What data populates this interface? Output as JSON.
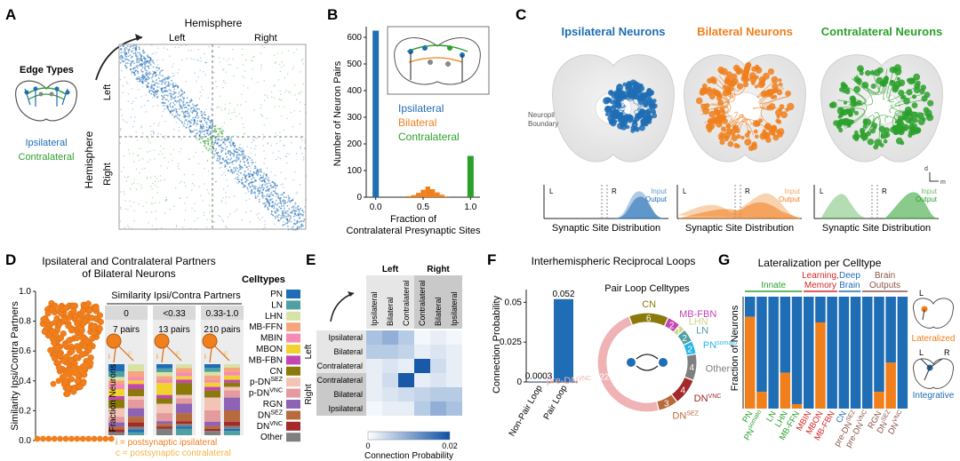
{
  "panels": {
    "a": "A",
    "b": "B",
    "c": "C",
    "d": "D",
    "e": "E",
    "f": "F",
    "g": "G"
  },
  "colors": {
    "ipsi": "#1f6db5",
    "bi": "#f07f1c",
    "contra": "#2ca02c",
    "bg": "#ffffff"
  },
  "panelA": {
    "edge_types_title": "Edge Types",
    "legend_ipsi": "Ipsilateral",
    "legend_contra": "Contralateral",
    "hemisphere_top": "Hemisphere",
    "hemisphere_side": "Hemisphere",
    "left": "Left",
    "right": "Right",
    "row_left": "Left",
    "row_right": "Right"
  },
  "panelB": {
    "ylabel": "Number of Neuron Pairs",
    "xlabel1": "Fraction of",
    "xlabel2": "Contralateral Presynaptic Sites",
    "legend": [
      "Ipsilateral",
      "Bilateral",
      "Contralateral"
    ],
    "yticks": [
      "0",
      "100",
      "200",
      "300",
      "400",
      "500",
      "600"
    ],
    "xticks": [
      "0.0",
      "0.5",
      "1.0"
    ]
  },
  "chart_data": {
    "type": "bar",
    "title": "",
    "xlabel": "Fraction of Contralateral Presynaptic Sites",
    "ylabel": "Number of Neuron Pairs",
    "ylim": [
      0,
      640
    ],
    "series": [
      {
        "name": "Ipsilateral",
        "x": [
          0.0
        ],
        "values": [
          625
        ]
      },
      {
        "name": "Bilateral",
        "x": [
          0.35,
          0.4,
          0.45,
          0.5,
          0.55,
          0.6,
          0.65,
          0.7,
          0.75
        ],
        "values": [
          4,
          8,
          16,
          28,
          40,
          30,
          18,
          9,
          3
        ]
      },
      {
        "name": "Contralateral",
        "x": [
          1.0
        ],
        "values": [
          155
        ]
      }
    ]
  },
  "panelC": {
    "titles": [
      "Ipsilateral Neurons",
      "Bilateral Neurons",
      "Contralateral Neurons"
    ],
    "neuropil": "Neuropil\nBoundary",
    "dist_label": "Synaptic Site Distribution",
    "lr_l": "L",
    "lr_r": "R",
    "input": "Input",
    "output": "Output",
    "axis_d": "d",
    "axis_m": "m"
  },
  "panelD": {
    "title1": "Ipsilateral and Contralateral Partners",
    "title2": "of Bilateral Neurons",
    "ylabel": "Similarity Ipsi/Contra Partners",
    "yticks": [
      "0.0",
      "0.2",
      "0.4",
      "0.6",
      "0.8",
      "1.0"
    ],
    "sim_title": "Similarity Ipsi/Contra Partners",
    "bins": [
      "0",
      "<0.33",
      "0.33-1.0"
    ],
    "pairs": [
      "7 pairs",
      "13 pairs",
      "210 pairs"
    ],
    "frac_label": "Fraction Neurons",
    "i_label": "i",
    "c_label": "c",
    "note_i": "i = postsynaptic ipsilateral",
    "note_c": "c = postsynaptic contralateral",
    "celltypes_title": "Celltypes",
    "celltypes": [
      {
        "name": "PN",
        "color": "#1f6db5"
      },
      {
        "name": "LN",
        "color": "#4f9fa3"
      },
      {
        "name": "LHN",
        "color": "#d7e3a6"
      },
      {
        "name": "MB-FFN",
        "color": "#f6a57c"
      },
      {
        "name": "MBIN",
        "color": "#f58ab5"
      },
      {
        "name": "MBON",
        "color": "#f2d22c"
      },
      {
        "name": "MB-FBN",
        "color": "#c446b3"
      },
      {
        "name": "CN",
        "color": "#8a7a0c"
      },
      {
        "name": "p-DN",
        "sup": "SEZ",
        "color": "#f3c4b6"
      },
      {
        "name": "p-DN",
        "sup": "VNC",
        "color": "#e59b9e"
      },
      {
        "name": "RGN",
        "color": "#8e63b5"
      },
      {
        "name": "DN",
        "sup": "SEZ",
        "color": "#b86a3c"
      },
      {
        "name": "DN",
        "sup": "VNC",
        "color": "#a3292a"
      },
      {
        "name": "Other",
        "color": "#7f7f7f"
      }
    ]
  },
  "panelE": {
    "col_left": "Left",
    "col_right": "Right",
    "cols": [
      "Ipsilateral",
      "Bilateral",
      "Contralateral",
      "Contralateral",
      "Bilateral",
      "Ipsilateral"
    ],
    "rows": [
      "Ipsilateral",
      "Bilateral",
      "Contralateral",
      "Contralateral",
      "Bilateral",
      "Ipsilateral"
    ],
    "row_left": "Left",
    "row_right": "Right",
    "scale_min": "0",
    "scale_max": "0.02",
    "scale_label": "Connection Probability"
  },
  "panelF": {
    "title": "Interhemispheric Reciprocal Loops",
    "ylabel": "Connection  Probability",
    "yticks": [
      "0",
      "0.025",
      "0.05"
    ],
    "bars": [
      {
        "label": "Non-Pair Loop",
        "value": 0.0003,
        "text": "0.0003"
      },
      {
        "label": "Pair Loop",
        "value": 0.052,
        "text": "0.052"
      }
    ],
    "donut_title": "Pair Loop Celltypes",
    "segments": [
      {
        "name": "CN",
        "count": "6",
        "color": "#8a7a0c"
      },
      {
        "name": "MB-FBN",
        "count": "2",
        "color": "#c446b3"
      },
      {
        "name": "LHN",
        "count": "1",
        "color": "#c9d88a"
      },
      {
        "name": "LN",
        "count": "2",
        "color": "#4f9fa3"
      },
      {
        "name": "PN",
        "sup": "somato",
        "count": "2",
        "color": "#29b6e8"
      },
      {
        "name": "Other",
        "count": "4",
        "color": "#7f7f7f"
      },
      {
        "name": "DN",
        "sup": "VNC",
        "count": "4",
        "color": "#a3292a"
      },
      {
        "name": "DN",
        "sup": "SEZ",
        "count": "3",
        "color": "#b86a3c"
      },
      {
        "name": "pre-DN",
        "sup": "VNC",
        "count": "22",
        "color": "#efb3b6"
      }
    ]
  },
  "panelG": {
    "title": "Lateralization per Celltype",
    "ylabel": "Fraction of Neurons",
    "groups": [
      {
        "label": "Innate",
        "color": "#2ca02c"
      },
      {
        "label": "Learning,\nMemory",
        "color": "#d62728"
      },
      {
        "label": "Deep\nBrain",
        "color": "#1f6db5"
      },
      {
        "label": "Brain\nOutputs",
        "color": "#8c564b"
      }
    ],
    "bars": [
      {
        "name": "PN",
        "sup": "",
        "lat": 0.82
      },
      {
        "name": "PN",
        "sup": "somato",
        "lat": 0.15
      },
      {
        "name": "LN",
        "sup": "",
        "lat": 0.0
      },
      {
        "name": "LHN",
        "sup": "",
        "lat": 0.32
      },
      {
        "name": "MB-FFN",
        "sup": "",
        "lat": 0.04
      },
      {
        "name": "MBIN",
        "sup": "",
        "lat": 0.0
      },
      {
        "name": "MBON",
        "sup": "",
        "lat": 0.77
      },
      {
        "name": "MB-FBN",
        "sup": "",
        "lat": 0.0
      },
      {
        "name": "CN",
        "sup": "",
        "lat": 0.0
      },
      {
        "name": "pre-DN",
        "sup": "SEZ",
        "lat": 0.0
      },
      {
        "name": "pre-DN",
        "sup": "VNC",
        "lat": 0.0
      },
      {
        "name": "RGN",
        "sup": "",
        "lat": 0.15
      },
      {
        "name": "DN",
        "sup": "SEZ",
        "lat": 0.41
      },
      {
        "name": "DN",
        "sup": "VNC",
        "lat": 0.0
      }
    ],
    "lateralized": "Lateralized",
    "integrative": "Integrative",
    "lr_l": "L",
    "lr_r": "R"
  }
}
